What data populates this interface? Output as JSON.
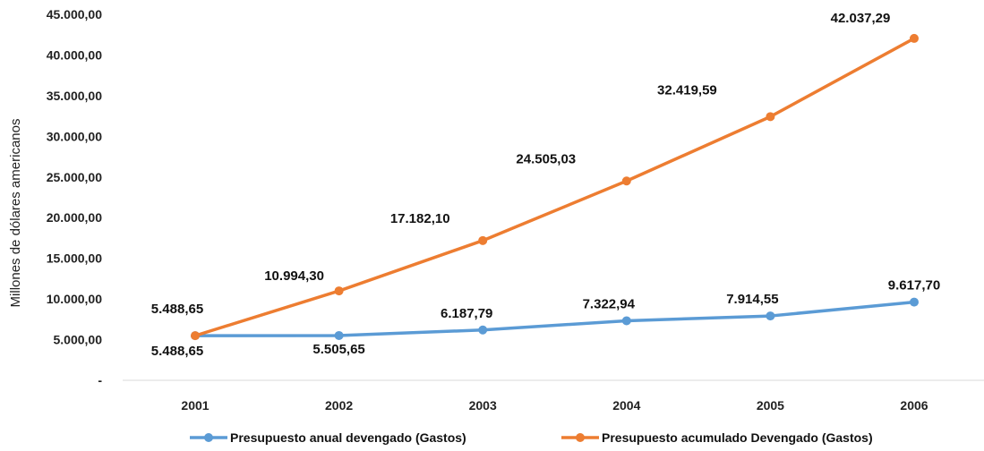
{
  "chart_data": {
    "type": "line",
    "ylabel": "Millones de dólares americanos",
    "categories": [
      "2001",
      "2002",
      "2003",
      "2004",
      "2005",
      "2006"
    ],
    "ylim": [
      0,
      45000
    ],
    "yticks": [
      0,
      5000,
      10000,
      15000,
      20000,
      25000,
      30000,
      35000,
      40000,
      45000
    ],
    "ytick_labels": [
      "-",
      "5.000,00",
      "10.000,00",
      "15.000,00",
      "20.000,00",
      "25.000,00",
      "30.000,00",
      "35.000,00",
      "40.000,00",
      "45.000,00"
    ],
    "grid": false,
    "legend_position": "bottom",
    "series": [
      {
        "name": "Presupuesto anual devengado (Gastos)",
        "color": "#5b9bd5",
        "values": [
          5488.65,
          5505.65,
          6187.79,
          7322.94,
          7914.55,
          9617.7
        ],
        "labels": [
          "5.488,65",
          "5.505,65",
          "6.187,79",
          "7.322,94",
          "7.914,55",
          "9.617,70"
        ]
      },
      {
        "name": "Presupuesto acumulado Devengado (Gastos)",
        "color": "#ed7d31",
        "values": [
          5488.65,
          10994.3,
          17182.1,
          24505.03,
          32419.59,
          42037.29
        ],
        "labels": [
          "5.488,65",
          "10.994,30",
          "17.182,10",
          "24.505,03",
          "32.419,59",
          "42.037,29"
        ]
      }
    ]
  }
}
